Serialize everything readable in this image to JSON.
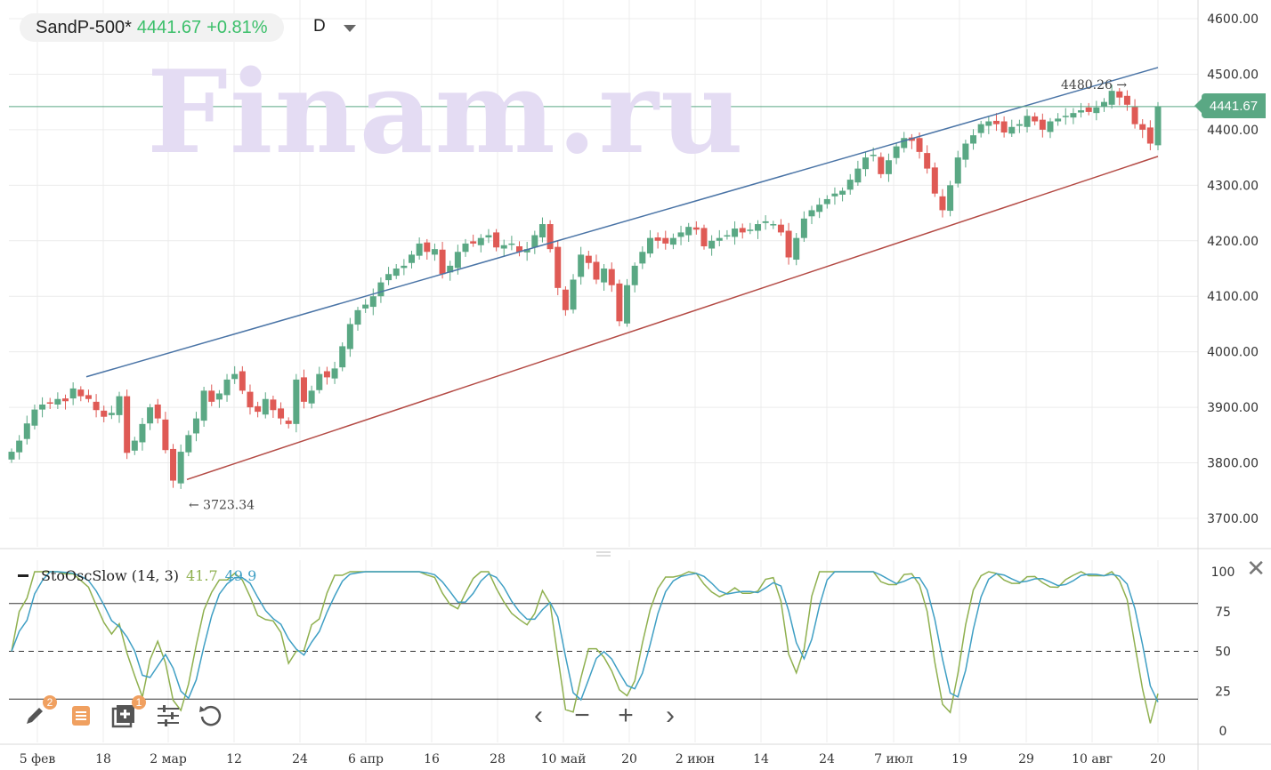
{
  "header": {
    "symbol": "SandP-500*",
    "price": "4441.67",
    "change": "+0.81%",
    "interval": "D",
    "watermark": "Finam.ru",
    "price_badge": "4441.67"
  },
  "chart_data": [
    {
      "type": "candlestick",
      "y_ticks": [
        "4600.00",
        "4500.00",
        "4400.00",
        "4300.00",
        "4200.00",
        "4100.00",
        "4000.00",
        "3900.00",
        "3800.00",
        "3700.00"
      ],
      "x_tick_labels": [
        "5 фев",
        "18",
        "2 мар",
        "12",
        "24",
        "6 апр",
        "16",
        "28",
        "10 май",
        "20",
        "2 июн",
        "14",
        "24",
        "7 июл",
        "19",
        "29",
        "10 авг",
        "20"
      ],
      "ylim": [
        3650,
        4620
      ],
      "last_price": 4441.67,
      "annotations": [
        {
          "label": "4480.26",
          "value": 4480.26
        },
        {
          "label": "3723.34",
          "value": 3723.34
        }
      ],
      "trend_lines": [
        {
          "name": "upper",
          "color": "#4a74a6",
          "from": [
            "18 фев",
            3955
          ],
          "to": [
            "20 авг",
            4512
          ]
        },
        {
          "name": "lower",
          "color": "#b44a44",
          "from": [
            "4 мар",
            3770
          ],
          "to": [
            "20 авг",
            4352
          ]
        }
      ],
      "up_color": "#5aa884",
      "down_color": "#df5a55",
      "closes": [
        3820,
        3840,
        3871,
        3896,
        3905,
        3908,
        3915,
        3911,
        3934,
        3920,
        3915,
        3895,
        3883,
        3890,
        3920,
        3818,
        3840,
        3870,
        3900,
        3880,
        3823,
        3768,
        3820,
        3850,
        3880,
        3930,
        3910,
        3925,
        3950,
        3960,
        3930,
        3900,
        3892,
        3915,
        3895,
        3880,
        3870,
        3950,
        3910,
        3930,
        3960,
        3954,
        3970,
        4010,
        4050,
        4075,
        4085,
        4100,
        4125,
        4140,
        4150,
        4155,
        4175,
        4195,
        4180,
        4185,
        4140,
        4155,
        4180,
        4195,
        4195,
        4205,
        4210,
        4188,
        4192,
        4195,
        4180,
        4185,
        4210,
        4230,
        4185,
        4115,
        4075,
        4130,
        4175,
        4160,
        4130,
        4150,
        4120,
        4055,
        4120,
        4155,
        4180,
        4205,
        4200,
        4195,
        4205,
        4215,
        4225,
        4220,
        4190,
        4200,
        4205,
        4210,
        4222,
        4215,
        4220,
        4230,
        4235,
        4230,
        4215,
        4170,
        4205,
        4240,
        4255,
        4265,
        4275,
        4285,
        4290,
        4310,
        4330,
        4350,
        4355,
        4320,
        4345,
        4370,
        4385,
        4380,
        4360,
        4330,
        4285,
        4255,
        4300,
        4350,
        4375,
        4390,
        4410,
        4415,
        4410,
        4395,
        4405,
        4410,
        4425,
        4415,
        4400,
        4415,
        4420,
        4425,
        4430,
        4435,
        4432,
        4440,
        4450,
        4470,
        4458,
        4445,
        4410,
        4400,
        4375,
        4441.67
      ],
      "stoch_levels": [
        100,
        75,
        50,
        25,
        0
      ],
      "stoch_label": "StoOscSlow (14, 3)",
      "stoch_k": "41.7",
      "stoch_d": "49.9"
    }
  ],
  "indicator": {
    "name": "StoOscSlow (14, 3)",
    "k_value": "41.7",
    "d_value": "49.9"
  },
  "toolbar": {
    "draw_badge": "2",
    "layers_badge": "1"
  }
}
